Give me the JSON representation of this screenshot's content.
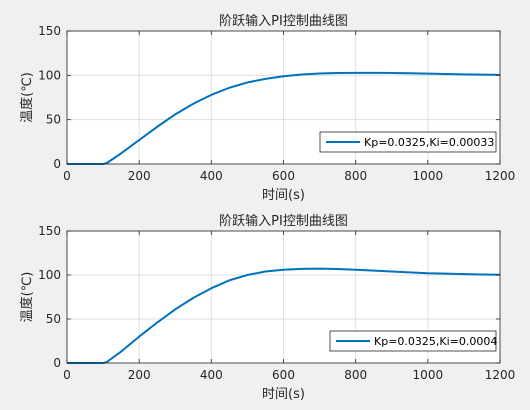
{
  "chart_data": [
    {
      "type": "line",
      "title": "阶跃输入PI控制曲线图",
      "xlabel": "时间(s)",
      "ylabel": "温度(℃)",
      "xlim": [
        0,
        1200
      ],
      "ylim": [
        0,
        150
      ],
      "xticks": [
        0,
        200,
        400,
        600,
        800,
        1000,
        1200
      ],
      "yticks": [
        0,
        50,
        100,
        150
      ],
      "grid": true,
      "legend_position": "bottom-right",
      "color": "#0072bd",
      "series": [
        {
          "name": "Kp=0.0325,Ki=0.00033",
          "x": [
            0,
            100,
            110,
            150,
            200,
            250,
            300,
            350,
            400,
            450,
            500,
            550,
            600,
            650,
            700,
            750,
            800,
            850,
            900,
            950,
            1000,
            1050,
            1100,
            1150,
            1200
          ],
          "y": [
            0,
            0,
            1,
            12,
            27,
            42,
            56,
            68,
            78,
            86,
            92,
            96,
            99,
            101,
            102,
            102.6,
            102.8,
            102.8,
            102.6,
            102.3,
            101.9,
            101.5,
            101.1,
            100.8,
            100.5
          ]
        }
      ]
    },
    {
      "type": "line",
      "title": "阶跃输入PI控制曲线图",
      "xlabel": "时间(s)",
      "ylabel": "温度(℃)",
      "xlim": [
        0,
        1200
      ],
      "ylim": [
        0,
        150
      ],
      "xticks": [
        0,
        200,
        400,
        600,
        800,
        1000,
        1200
      ],
      "yticks": [
        0,
        50,
        100,
        150
      ],
      "grid": true,
      "legend_position": "bottom-right",
      "color": "#0072bd",
      "series": [
        {
          "name": "Kp=0.0325,Ki=0.0004",
          "x": [
            0,
            100,
            110,
            150,
            200,
            250,
            300,
            350,
            400,
            450,
            500,
            550,
            600,
            650,
            700,
            750,
            800,
            850,
            900,
            950,
            1000,
            1050,
            1100,
            1150,
            1200
          ],
          "y": [
            0,
            0,
            1,
            13,
            30,
            46,
            61,
            74,
            85,
            94,
            100,
            104,
            106,
            107,
            107.2,
            106.8,
            106,
            105,
            104,
            103,
            102,
            101.5,
            101,
            100.6,
            100.3
          ]
        }
      ]
    }
  ]
}
